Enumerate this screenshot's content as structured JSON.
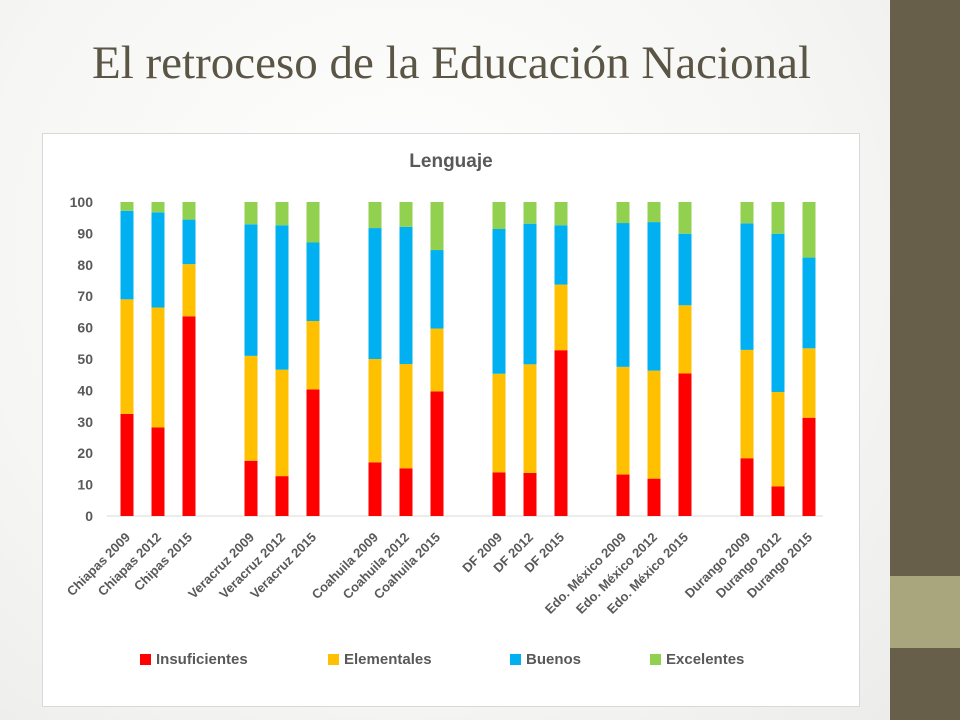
{
  "slide": {
    "title": "El retroceso de la Educación Nacional",
    "colors": {
      "band": "#675f49",
      "accent": "#a9a57c",
      "title": "#5b5546"
    }
  },
  "chart_data": {
    "type": "bar",
    "stacked": true,
    "title": "Lenguaje",
    "xlabel": "",
    "ylabel": "",
    "ylim": [
      0,
      100
    ],
    "yticks": [
      0,
      10,
      20,
      30,
      40,
      50,
      60,
      70,
      80,
      90,
      100
    ],
    "grid": false,
    "legend": "bottom",
    "categories": [
      "Chiapas 2009",
      "Chiapas 2012",
      "Chipas 2015",
      "Veracruz 2009",
      "Veracruz 2012",
      "Veracruz 2015",
      "Coahuila 2009",
      "Coahuila 2012",
      "Coahuila 2015",
      "DF 2009",
      "DF 2012",
      "DF 2015",
      "Edo. México 2009",
      "Edo. México 2012",
      "Edo. México 2015",
      "Durango 2009",
      "Durango 2012",
      "Durango 2015"
    ],
    "groups": [
      [
        0,
        1,
        2
      ],
      [
        3,
        4,
        5
      ],
      [
        6,
        7,
        8
      ],
      [
        9,
        10,
        11
      ],
      [
        12,
        13,
        14
      ],
      [
        15,
        16,
        17
      ]
    ],
    "series": [
      {
        "name": "Insuficientes",
        "color": "#ff0000",
        "values": [
          32.5,
          28.2,
          63.6,
          17.6,
          12.7,
          40.3,
          17.1,
          15.2,
          39.7,
          13.9,
          13.7,
          52.8,
          13.2,
          11.9,
          45.4,
          18.4,
          9.4,
          31.3
        ]
      },
      {
        "name": "Elementales",
        "color": "#ffc000",
        "values": [
          36.5,
          38.2,
          16.6,
          33.4,
          33.9,
          21.8,
          32.9,
          33.2,
          20.0,
          31.4,
          34.6,
          20.9,
          34.3,
          34.4,
          21.7,
          34.5,
          30.1,
          22.1
        ]
      },
      {
        "name": "Buenos",
        "color": "#00b0f0",
        "values": [
          28.2,
          30.3,
          14.2,
          41.9,
          46.0,
          25.0,
          41.7,
          43.7,
          25.0,
          46.1,
          44.8,
          18.9,
          45.8,
          47.3,
          22.8,
          40.3,
          50.4,
          28.9
        ]
      },
      {
        "name": "Excelentes",
        "color": "#92d050",
        "values": [
          2.8,
          3.3,
          5.6,
          7.1,
          7.4,
          12.9,
          8.3,
          7.9,
          15.3,
          8.6,
          6.9,
          7.4,
          6.7,
          6.4,
          10.1,
          6.8,
          10.1,
          17.7
        ]
      }
    ]
  }
}
